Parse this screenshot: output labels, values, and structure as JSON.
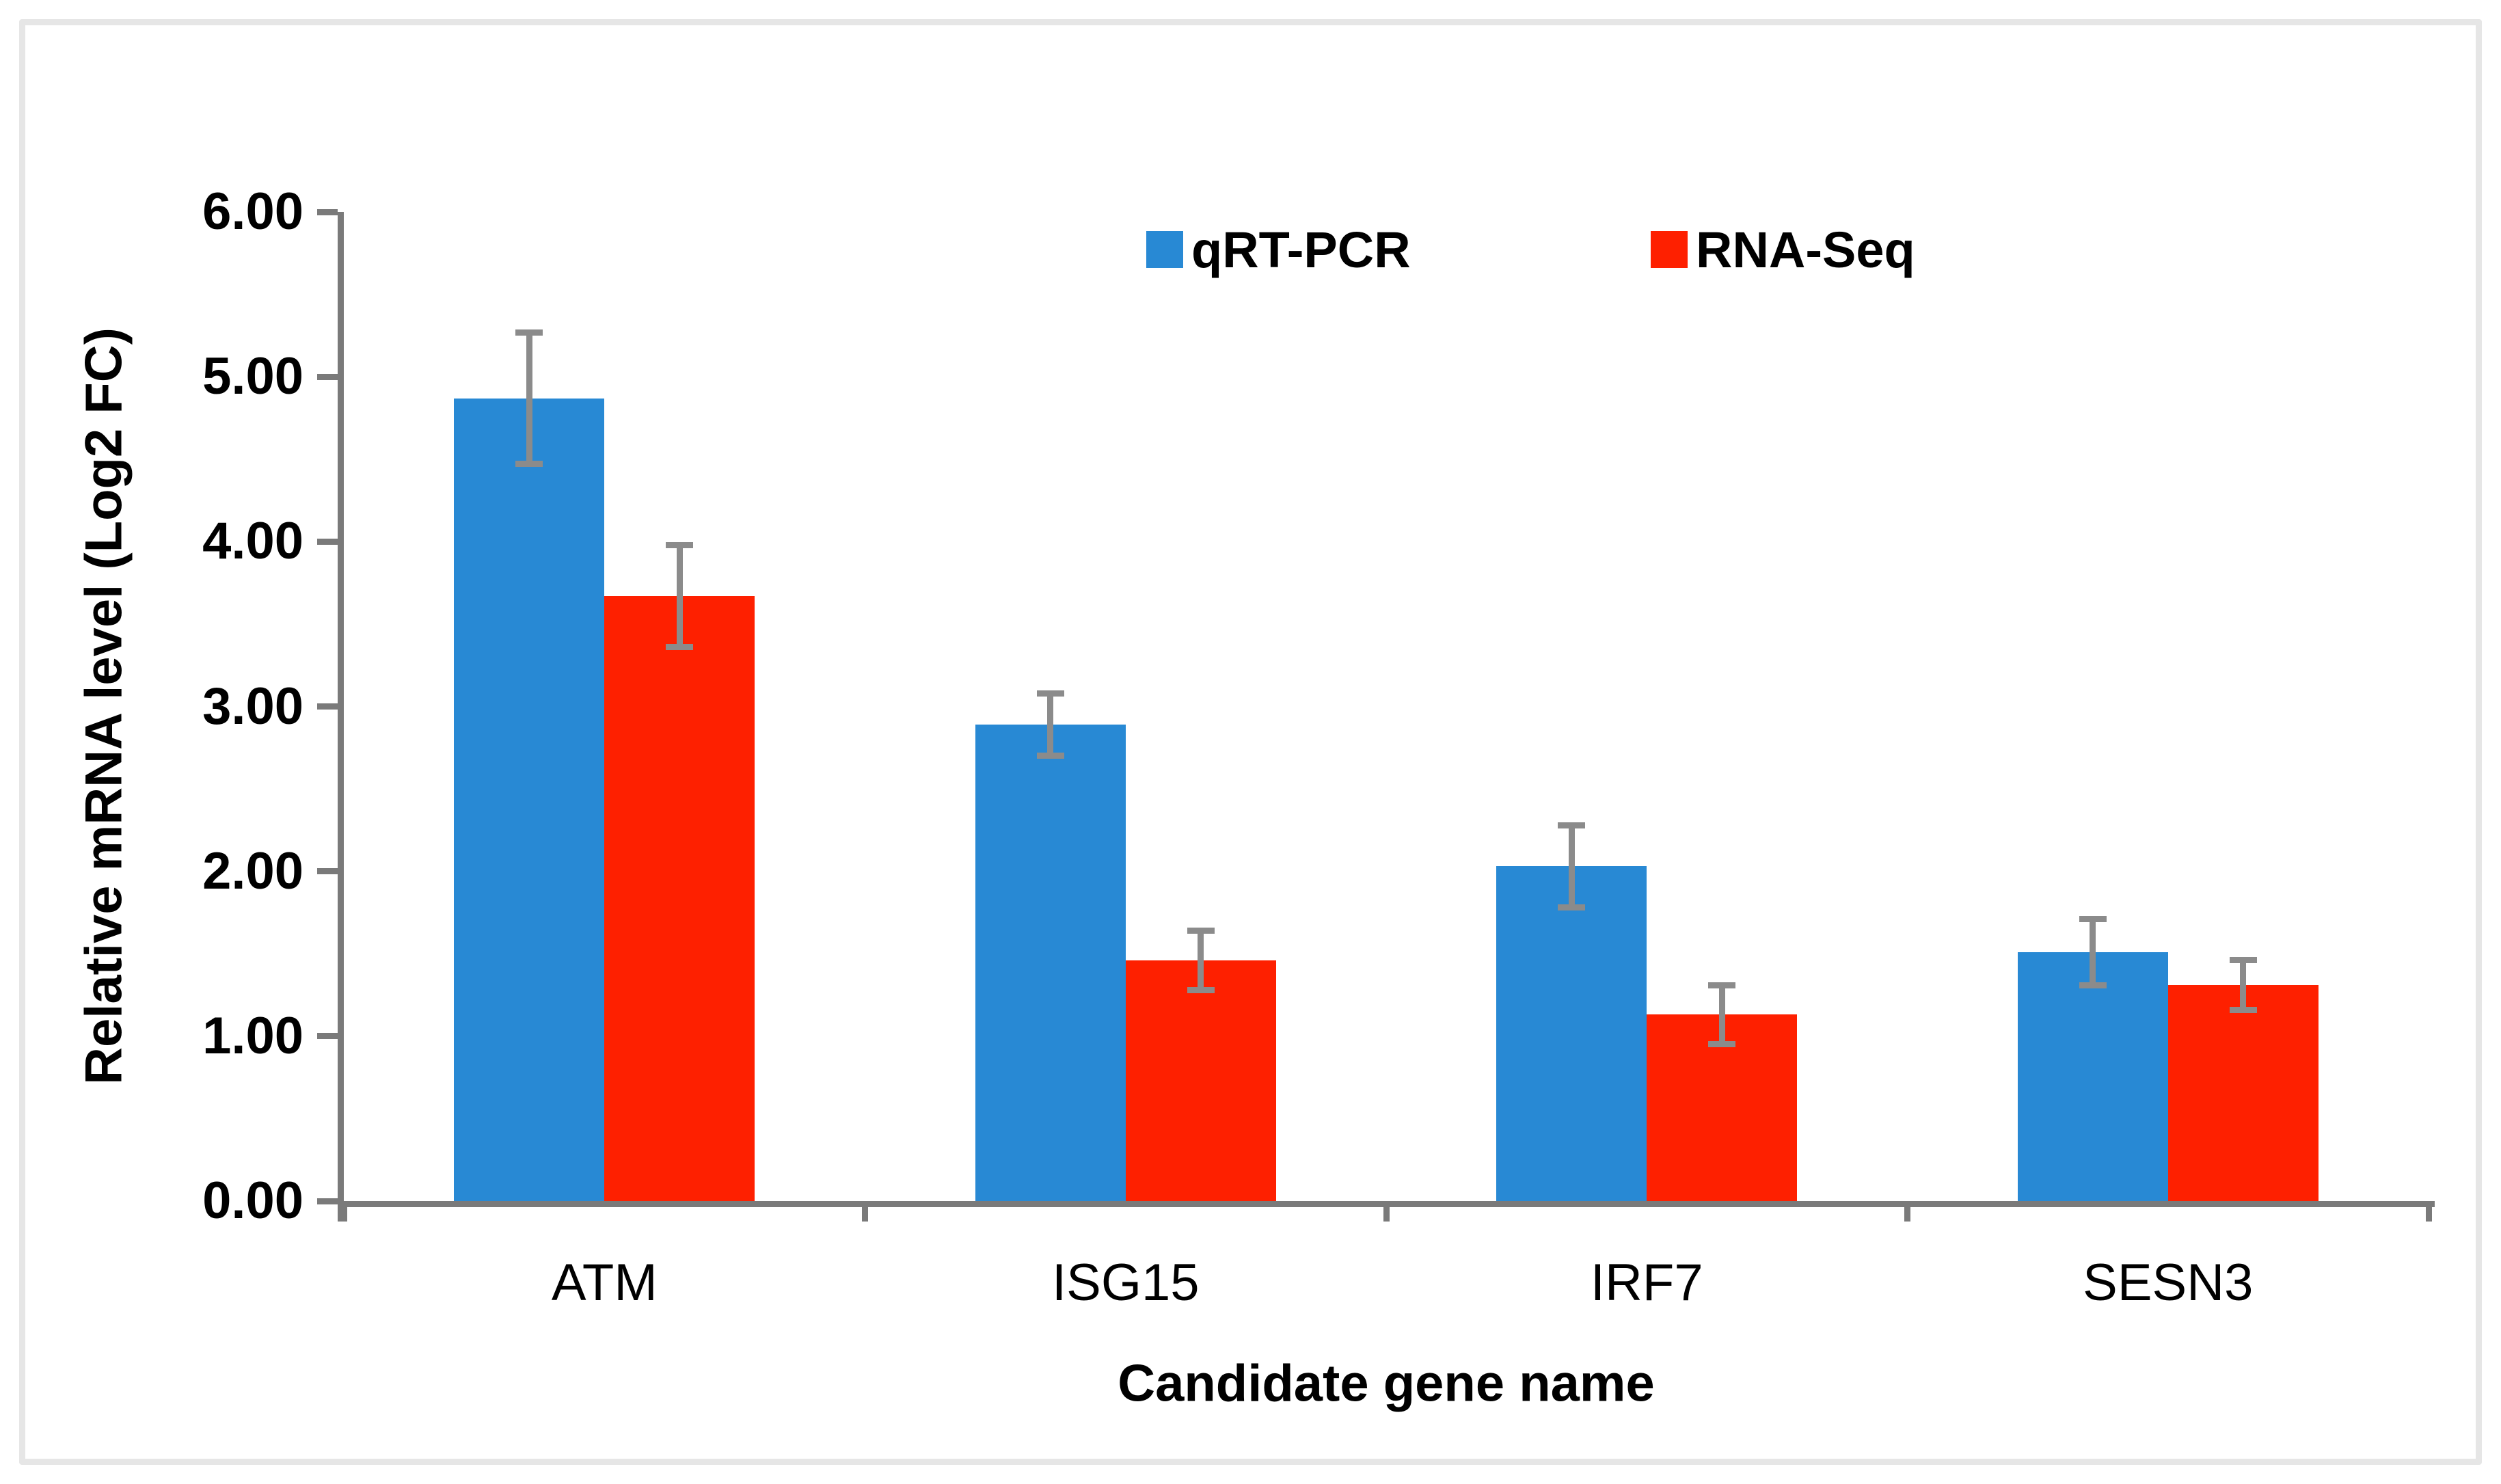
{
  "chart_data": {
    "type": "bar",
    "title": "",
    "xlabel": "Candidate gene name",
    "ylabel": "Relative mRNA level (Log2 FC)",
    "categories": [
      "ATM",
      "ISG15",
      "IRF7",
      "SESN3"
    ],
    "series": [
      {
        "name": "qRT-PCR",
        "color": "#2889d4",
        "values": [
          4.87,
          2.89,
          2.03,
          1.51
        ],
        "errors": [
          0.4,
          0.19,
          0.25,
          0.2
        ]
      },
      {
        "name": "RNA-Seq",
        "color": "#fe2000",
        "values": [
          3.67,
          1.46,
          1.13,
          1.31
        ],
        "errors": [
          0.31,
          0.18,
          0.18,
          0.15
        ]
      }
    ],
    "ylim": [
      0,
      6
    ],
    "yticks": [
      {
        "value": 0,
        "label": "0.00"
      },
      {
        "value": 1,
        "label": "1.00"
      },
      {
        "value": 2,
        "label": "2.00"
      },
      {
        "value": 3,
        "label": "3.00"
      },
      {
        "value": 4,
        "label": "4.00"
      },
      {
        "value": 5,
        "label": "5.00"
      },
      {
        "value": 6,
        "label": "6.00"
      }
    ],
    "grid": false,
    "error_bars": true,
    "legend_position": "top-center",
    "axis_color": "#7a7a7a",
    "error_bar_color": "#8b8b8b",
    "background_color": "#ffffff",
    "frame_color": "#e6e6e6"
  }
}
